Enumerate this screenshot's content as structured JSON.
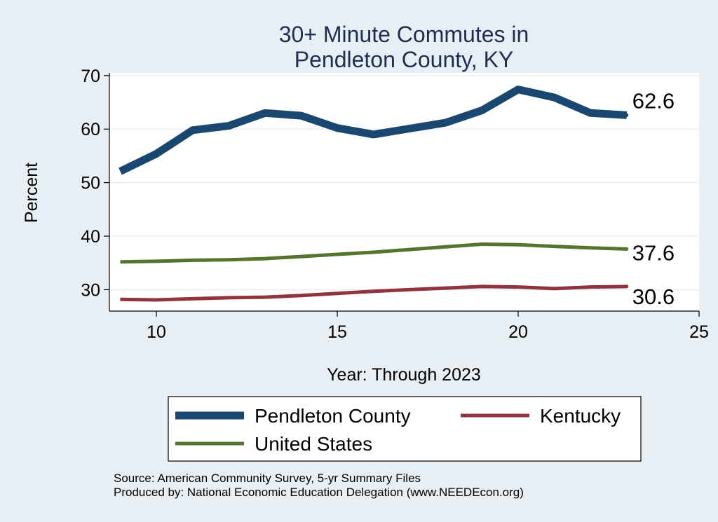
{
  "chart_data": {
    "type": "line",
    "title": [
      "30+ Minute Commutes in",
      "Pendleton County, KY"
    ],
    "xlabel": "Year: Through 2023",
    "ylabel": "Percent",
    "xlim": [
      8.7,
      25
    ],
    "ylim": [
      26,
      70.5
    ],
    "x_ticks": [
      10,
      15,
      20,
      25
    ],
    "y_ticks": [
      30,
      40,
      50,
      60,
      70
    ],
    "grid": true,
    "x": [
      9,
      10,
      11,
      12,
      13,
      14,
      15,
      16,
      17,
      18,
      19,
      20,
      21,
      22,
      23
    ],
    "series": [
      {
        "name": "Pendleton County",
        "color": "#1a476f",
        "values": [
          52.1,
          55.4,
          59.8,
          60.6,
          63.0,
          62.5,
          60.2,
          59.0,
          60.1,
          61.2,
          63.5,
          67.4,
          65.9,
          63.0,
          62.6
        ],
        "end_label": "62.6"
      },
      {
        "name": "Kentucky",
        "color": "#90353b",
        "values": [
          28.2,
          28.1,
          28.3,
          28.5,
          28.6,
          28.9,
          29.3,
          29.7,
          30.0,
          30.3,
          30.6,
          30.5,
          30.2,
          30.5,
          30.6
        ],
        "end_label": "30.6"
      },
      {
        "name": "United States",
        "color": "#55752f",
        "values": [
          35.2,
          35.3,
          35.5,
          35.6,
          35.8,
          36.2,
          36.6,
          37.0,
          37.5,
          38.0,
          38.5,
          38.4,
          38.1,
          37.8,
          37.6
        ],
        "end_label": "37.6"
      }
    ],
    "legend": [
      "Pendleton County",
      "Kentucky",
      "United States"
    ],
    "source": [
      "Source: American Community Survey, 5-yr Summary Files",
      "Produced by: National Economic Education Delegation (www.NEEDEcon.org)"
    ]
  }
}
